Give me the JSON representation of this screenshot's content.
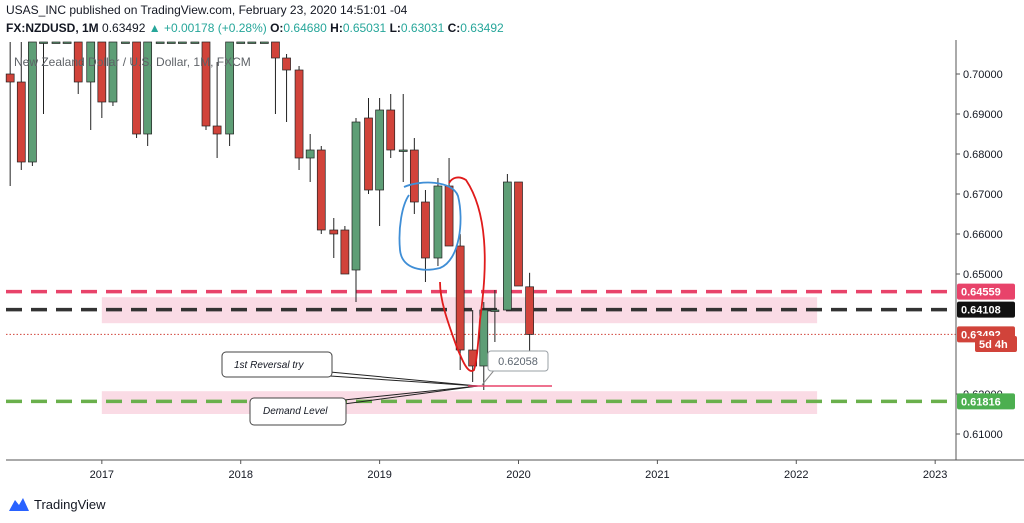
{
  "header": {
    "line1": "USAS_INC published on TradingView.com, February 23, 2020 14:51:01 -04",
    "symbol": "FX:NZDUSD, 1M",
    "last": "0.63492",
    "change": "+0.00178 (+0.28%)",
    "o_label": "O:",
    "o_value": "0.64680",
    "h_label": "H:",
    "h_value": "0.65031",
    "l_label": "L:",
    "l_value": "0.63031",
    "c_label": "C:",
    "c_value": "0.63492"
  },
  "watermark": "New Zealand Dollar / U.S. Dollar, 1M, FXCM",
  "footer": {
    "brand": "TradingView"
  },
  "annotations": {
    "reversal": "1st Reversal try",
    "demand": "Demand Level",
    "low_price": "0.62058"
  },
  "colors": {
    "up": "#5e9e76",
    "down": "#d1433a",
    "red_line": "#e8436a",
    "black_line": "#333333",
    "green_line": "#6ab04c",
    "zone": "#f8cfdc",
    "blue_circle": "#3f8ed6",
    "red_circle": "#e01b1b"
  },
  "price_labels": [
    {
      "value": "0.64559",
      "price": 0.64559,
      "bg": "#e8436a",
      "fg": "#ffffff"
    },
    {
      "value": "0.64108",
      "price": 0.64108,
      "bg": "#111111",
      "fg": "#ffffff"
    },
    {
      "value": "0.63492",
      "price": 0.63492,
      "bg": "#d1433a",
      "fg": "#ffffff"
    },
    {
      "value": "5d 4h",
      "price": 0.6325,
      "bg": "#d1433a",
      "fg": "#ffffff"
    },
    {
      "value": "0.61816",
      "price": 0.61816,
      "bg": "#4caf50",
      "fg": "#ffffff"
    }
  ],
  "chart_data": {
    "type": "candlestick",
    "title": "New Zealand Dollar / U.S. Dollar, 1M, FXCM",
    "symbol": "FX:NZDUSD",
    "timeframe": "1M",
    "y_ticks": [
      "0.70000",
      "0.69000",
      "0.68000",
      "0.67000",
      "0.66000",
      "0.65000",
      "0.62000",
      "0.61000"
    ],
    "y_tick_values": [
      0.7,
      0.69,
      0.68,
      0.67,
      0.66,
      0.65,
      0.62,
      0.61
    ],
    "ylim": [
      0.6035,
      0.7085
    ],
    "x_ticks": [
      "2017",
      "2018",
      "2019",
      "2020",
      "2021",
      "2022",
      "2023"
    ],
    "x_tick_values": [
      2017,
      2018,
      2019,
      2020,
      2021,
      2022,
      2023
    ],
    "xlim": [
      2016.31,
      2023.15
    ],
    "horizontal_lines": [
      {
        "price": 0.64559,
        "style": "dashed",
        "color": "#e8436a"
      },
      {
        "price": 0.64108,
        "style": "dashed",
        "color": "#333333"
      },
      {
        "price": 0.61816,
        "style": "dashed",
        "color": "#6ab04c"
      },
      {
        "price": 0.63492,
        "style": "dotted",
        "color": "#d1433a"
      }
    ],
    "zones": [
      {
        "from_t": 2017.0,
        "to_t": 2022.15,
        "top": 0.6442,
        "bottom": 0.6377
      },
      {
        "from_t": 2017.0,
        "to_t": 2022.15,
        "top": 0.6207,
        "bottom": 0.615
      }
    ],
    "candles": [
      {
        "t": 2016.34,
        "o": 0.7,
        "h": 0.708,
        "l": 0.672,
        "c": 0.698
      },
      {
        "t": 2016.42,
        "o": 0.698,
        "h": 0.708,
        "l": 0.676,
        "c": 0.678
      },
      {
        "t": 2016.5,
        "o": 0.678,
        "h": 0.708,
        "l": 0.677,
        "c": 0.708
      },
      {
        "t": 2016.58,
        "o": 0.708,
        "h": 0.708,
        "l": 0.69,
        "c": 0.708
      },
      {
        "t": 2016.67,
        "o": 0.708,
        "h": 0.708,
        "l": 0.708,
        "c": 0.708
      },
      {
        "t": 2016.75,
        "o": 0.708,
        "h": 0.708,
        "l": 0.708,
        "c": 0.708
      },
      {
        "t": 2016.83,
        "o": 0.708,
        "h": 0.708,
        "l": 0.695,
        "c": 0.698
      },
      {
        "t": 2016.92,
        "o": 0.698,
        "h": 0.708,
        "l": 0.686,
        "c": 0.708
      },
      {
        "t": 2017.0,
        "o": 0.708,
        "h": 0.708,
        "l": 0.689,
        "c": 0.693
      },
      {
        "t": 2017.08,
        "o": 0.693,
        "h": 0.708,
        "l": 0.692,
        "c": 0.708
      },
      {
        "t": 2017.17,
        "o": 0.708,
        "h": 0.708,
        "l": 0.708,
        "c": 0.708
      },
      {
        "t": 2017.25,
        "o": 0.708,
        "h": 0.708,
        "l": 0.684,
        "c": 0.685
      },
      {
        "t": 2017.33,
        "o": 0.685,
        "h": 0.708,
        "l": 0.682,
        "c": 0.708
      },
      {
        "t": 2017.42,
        "o": 0.708,
        "h": 0.708,
        "l": 0.708,
        "c": 0.708
      },
      {
        "t": 2017.5,
        "o": 0.708,
        "h": 0.708,
        "l": 0.708,
        "c": 0.708
      },
      {
        "t": 2017.58,
        "o": 0.708,
        "h": 0.708,
        "l": 0.708,
        "c": 0.708
      },
      {
        "t": 2017.67,
        "o": 0.708,
        "h": 0.708,
        "l": 0.708,
        "c": 0.708
      },
      {
        "t": 2017.75,
        "o": 0.708,
        "h": 0.708,
        "l": 0.686,
        "c": 0.687
      },
      {
        "t": 2017.83,
        "o": 0.687,
        "h": 0.703,
        "l": 0.679,
        "c": 0.685
      },
      {
        "t": 2017.92,
        "o": 0.685,
        "h": 0.708,
        "l": 0.682,
        "c": 0.708
      },
      {
        "t": 2018.0,
        "o": 0.708,
        "h": 0.708,
        "l": 0.708,
        "c": 0.708
      },
      {
        "t": 2018.08,
        "o": 0.708,
        "h": 0.708,
        "l": 0.708,
        "c": 0.708
      },
      {
        "t": 2018.17,
        "o": 0.708,
        "h": 0.708,
        "l": 0.708,
        "c": 0.708
      },
      {
        "t": 2018.25,
        "o": 0.708,
        "h": 0.708,
        "l": 0.69,
        "c": 0.704
      },
      {
        "t": 2018.33,
        "o": 0.704,
        "h": 0.705,
        "l": 0.688,
        "c": 0.701
      },
      {
        "t": 2018.42,
        "o": 0.701,
        "h": 0.702,
        "l": 0.676,
        "c": 0.679
      },
      {
        "t": 2018.5,
        "o": 0.679,
        "h": 0.685,
        "l": 0.673,
        "c": 0.681
      },
      {
        "t": 2018.58,
        "o": 0.681,
        "h": 0.682,
        "l": 0.66,
        "c": 0.661
      },
      {
        "t": 2018.67,
        "o": 0.661,
        "h": 0.664,
        "l": 0.654,
        "c": 0.66
      },
      {
        "t": 2018.75,
        "o": 0.661,
        "h": 0.662,
        "l": 0.65,
        "c": 0.65
      },
      {
        "t": 2018.83,
        "o": 0.651,
        "h": 0.689,
        "l": 0.643,
        "c": 0.688
      },
      {
        "t": 2018.92,
        "o": 0.689,
        "h": 0.694,
        "l": 0.67,
        "c": 0.671
      },
      {
        "t": 2019.0,
        "o": 0.671,
        "h": 0.694,
        "l": 0.662,
        "c": 0.691
      },
      {
        "t": 2019.08,
        "o": 0.691,
        "h": 0.695,
        "l": 0.679,
        "c": 0.681
      },
      {
        "t": 2019.17,
        "o": 0.681,
        "h": 0.695,
        "l": 0.673,
        "c": 0.681
      },
      {
        "t": 2019.25,
        "o": 0.681,
        "h": 0.684,
        "l": 0.665,
        "c": 0.668
      },
      {
        "t": 2019.33,
        "o": 0.668,
        "h": 0.671,
        "l": 0.648,
        "c": 0.654
      },
      {
        "t": 2019.42,
        "o": 0.654,
        "h": 0.674,
        "l": 0.652,
        "c": 0.672
      },
      {
        "t": 2019.5,
        "o": 0.672,
        "h": 0.679,
        "l": 0.657,
        "c": 0.657
      },
      {
        "t": 2019.58,
        "o": 0.657,
        "h": 0.66,
        "l": 0.626,
        "c": 0.631
      },
      {
        "t": 2019.67,
        "o": 0.631,
        "h": 0.641,
        "l": 0.623,
        "c": 0.627
      },
      {
        "t": 2019.75,
        "o": 0.627,
        "h": 0.643,
        "l": 0.621,
        "c": 0.641
      },
      {
        "t": 2019.83,
        "o": 0.641,
        "h": 0.646,
        "l": 0.633,
        "c": 0.641
      },
      {
        "t": 2019.92,
        "o": 0.641,
        "h": 0.675,
        "l": 0.641,
        "c": 0.673
      },
      {
        "t": 2020.0,
        "o": 0.673,
        "h": 0.673,
        "l": 0.648,
        "c": 0.647
      },
      {
        "t": 2020.08,
        "o": 0.6468,
        "h": 0.6503,
        "l": 0.6303,
        "c": 0.6349
      }
    ]
  }
}
